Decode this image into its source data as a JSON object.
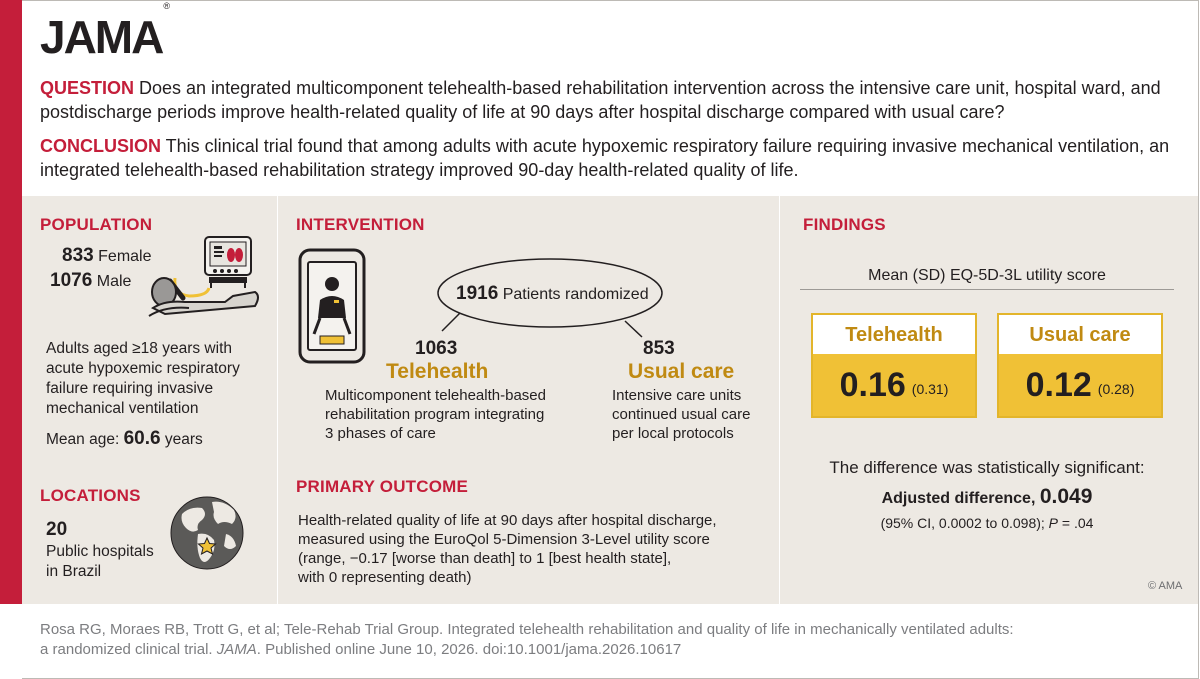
{
  "brand": {
    "name": "JAMA",
    "mark": "®"
  },
  "question": {
    "label": "QUESTION",
    "text": " Does an integrated multicomponent telehealth-based rehabilitation intervention across the intensive care unit, hospital ward, and postdischarge periods improve health-related quality of life at 90 days after hospital discharge compared with usual care?"
  },
  "conclusion": {
    "label": "CONCLUSION",
    "text": " This clinical trial found that among adults with acute hypoxemic respiratory failure requiring invasive mechanical ventilation, an integrated telehealth-based rehabilitation strategy improved 90-day health-related quality of life."
  },
  "population": {
    "title": "POPULATION",
    "female_n": "833",
    "female_label": "Female",
    "male_n": "1076",
    "male_label": "Male",
    "description": "Adults aged ≥18 years with acute hypoxemic respiratory failure requiring invasive mechanical ventilation",
    "mean_age_label": "Mean age: ",
    "mean_age_value": "60.6",
    "mean_age_unit": " years"
  },
  "locations": {
    "title": "LOCATIONS",
    "count": "20",
    "description_1": "Public hospitals",
    "description_2": "in Brazil"
  },
  "intervention": {
    "title": "INTERVENTION",
    "randomized_n": "1916",
    "randomized_label": "Patients randomized",
    "arm1": {
      "n": "1063",
      "name": "Telehealth",
      "desc_1": "Multicomponent telehealth-based",
      "desc_2": "rehabilitation program integrating",
      "desc_3": "3 phases of care"
    },
    "arm2": {
      "n": "853",
      "name": "Usual care",
      "desc_1": "Intensive care units",
      "desc_2": "continued usual care",
      "desc_3": "per local protocols"
    }
  },
  "primary_outcome": {
    "title": "PRIMARY OUTCOME",
    "line_1": "Health-related quality of life at 90 days after hospital discharge,",
    "line_2": "measured using the EuroQol 5-Dimension 3-Level utility score",
    "line_3": "(range, −0.17 [worse than death] to 1 [best health state],",
    "line_4": "with 0 representing death)"
  },
  "findings": {
    "title": "FINDINGS",
    "subtitle": "Mean (SD) EQ-5D-3L utility score",
    "telehealth": {
      "label": "Telehealth",
      "mean": "0.16",
      "sd": "(0.31)"
    },
    "usual_care": {
      "label": "Usual care",
      "mean": "0.12",
      "sd": "(0.28)"
    },
    "significance": "The difference was statistically significant:",
    "adjusted_label": "Adjusted difference, ",
    "adjusted_value": "0.049",
    "ci_text": "(95% CI, 0.0002 to 0.098); ",
    "p_label": "P",
    "p_value": " = .04"
  },
  "credit": "© AMA",
  "citation": {
    "line_1": "Rosa RG, Moraes RB, Trott G, et al; Tele-Rehab Trial Group. Integrated telehealth rehabilitation and quality of life in mechanically ventilated adults:",
    "line_2a": "a randomized clinical trial. ",
    "journal": "JAMA",
    "line_2b": ". Published online June 10, 2026. doi:10.1001/jama.2026.10617"
  },
  "colors": {
    "accent_red": "#c41e3a",
    "gold": "#f0c136",
    "gold_text": "#c08a12",
    "panel_bg": "#ede9e3"
  }
}
